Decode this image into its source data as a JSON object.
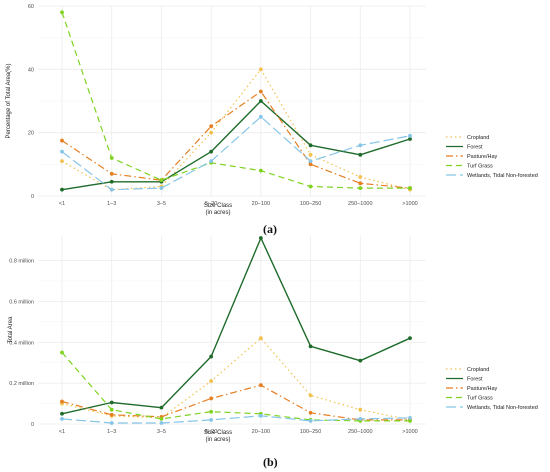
{
  "captions": {
    "a": "(a)",
    "b": "(b)"
  },
  "chart_data": [
    {
      "type": "line",
      "title": "",
      "xlabel": "Size Class\n(in acres)",
      "ylabel": "Percentage of Total Area(%)",
      "categories": [
        "<1",
        "1–3",
        "3–5",
        "5–20",
        "20–100",
        "100–250",
        "250–1000",
        ">1000"
      ],
      "ylim": [
        0,
        60
      ],
      "yticks": [
        0,
        20,
        40,
        60
      ],
      "ytick_labels": [
        "0",
        "20",
        "40",
        "60"
      ],
      "grid": true,
      "legend_position": "right",
      "series": [
        {
          "name": "Cropland",
          "color": "#f2c14e",
          "dash": "dotted",
          "values": [
            11,
            2,
            3,
            20,
            40,
            13,
            6,
            2
          ]
        },
        {
          "name": "Forest",
          "color": "#1e6b2b",
          "dash": "solid",
          "values": [
            2,
            4.5,
            4.5,
            14,
            30,
            16,
            13,
            18
          ]
        },
        {
          "name": "Pasture/Hay",
          "color": "#e67e22",
          "dash": "dashdot",
          "values": [
            17.5,
            7,
            5,
            22,
            33,
            10,
            4,
            2.5
          ]
        },
        {
          "name": "Turf Grass",
          "color": "#7ed321",
          "dash": "dashed",
          "values": [
            58,
            12,
            5,
            10.5,
            8,
            3,
            2.5,
            2.5
          ]
        },
        {
          "name": "Wetlands, Tidal Non-forested",
          "color": "#86c5e8",
          "dash": "longdash",
          "values": [
            14,
            2,
            2.5,
            11,
            25,
            11,
            16,
            19
          ]
        }
      ]
    },
    {
      "type": "line",
      "title": "",
      "xlabel": "Size Class\n(in acres)",
      "ylabel": "Total Area",
      "categories": [
        "<1",
        "1–3",
        "3–5",
        "5–20",
        "20–100",
        "100–250",
        "250–1000",
        ">1000"
      ],
      "ylim": [
        0,
        0.92
      ],
      "yticks": [
        0,
        0.2,
        0.4,
        0.6,
        0.8
      ],
      "ytick_labels": [
        "0",
        "0.2 million",
        "0.4 million",
        "0.6 million",
        "0.8 million"
      ],
      "grid": true,
      "legend_position": "right",
      "series": [
        {
          "name": "Cropland",
          "color": "#f2c14e",
          "dash": "dotted",
          "values": [
            0.1,
            0.04,
            0.03,
            0.21,
            0.42,
            0.14,
            0.07,
            0.02
          ]
        },
        {
          "name": "Forest",
          "color": "#1e6b2b",
          "dash": "solid",
          "values": [
            0.05,
            0.105,
            0.08,
            0.33,
            0.91,
            0.38,
            0.31,
            0.42
          ]
        },
        {
          "name": "Pasture/Hay",
          "color": "#e67e22",
          "dash": "dashdot",
          "values": [
            0.11,
            0.045,
            0.035,
            0.125,
            0.19,
            0.055,
            0.02,
            0.02
          ]
        },
        {
          "name": "Turf Grass",
          "color": "#7ed321",
          "dash": "dashed",
          "values": [
            0.35,
            0.07,
            0.025,
            0.06,
            0.05,
            0.02,
            0.015,
            0.015
          ]
        },
        {
          "name": "Wetlands, Tidal Non-forested",
          "color": "#86c5e8",
          "dash": "longdash",
          "values": [
            0.025,
            0.005,
            0.005,
            0.02,
            0.04,
            0.015,
            0.025,
            0.03
          ]
        }
      ]
    }
  ]
}
